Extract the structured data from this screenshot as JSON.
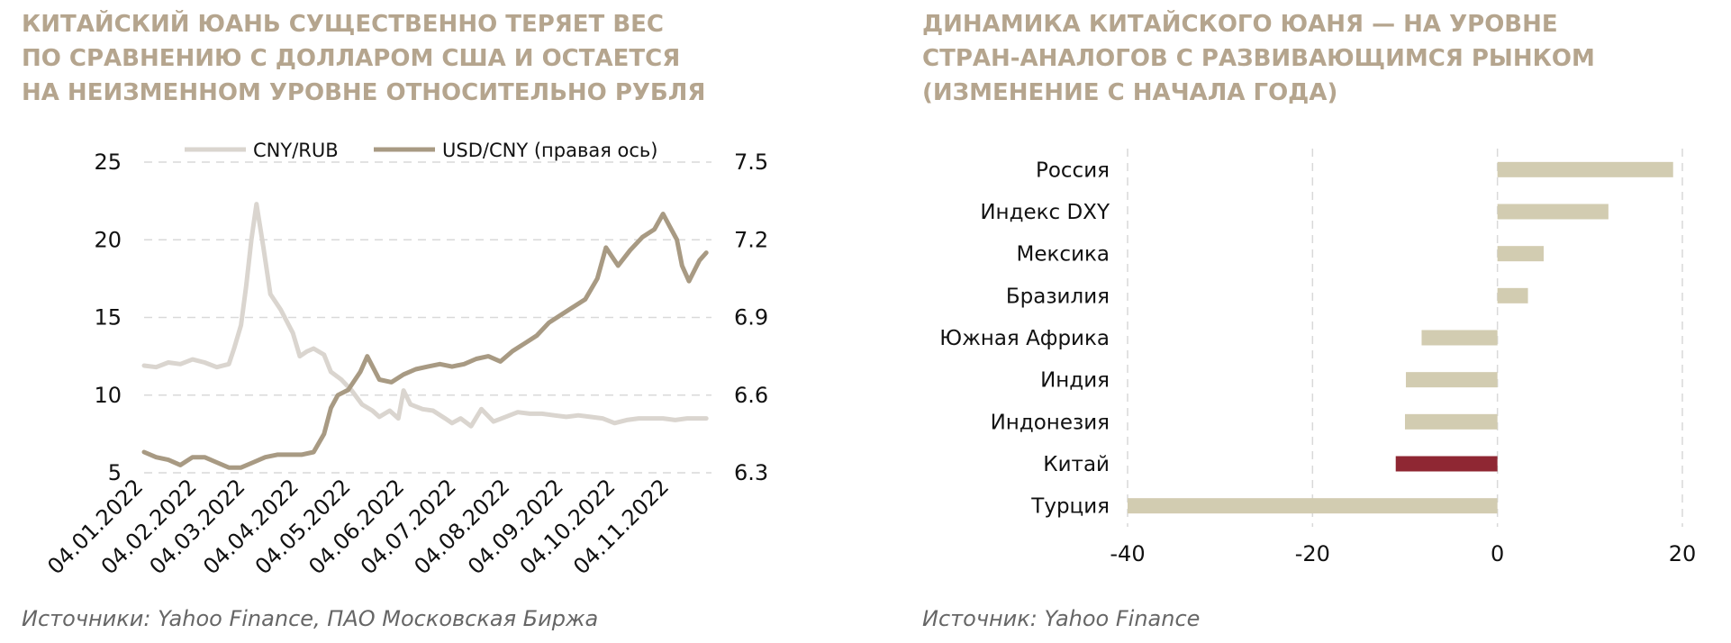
{
  "left": {
    "title": "КИТАЙСКИЙ ЮАНЬ СУЩЕСТВЕННО ТЕРЯЕТ ВЕС ПО СРАВНЕНИЮ С ДОЛЛАРОМ США И ОСТАЕТСЯ НА НЕИЗМЕННОМ УРОВНЕ ОТНОСИТЕЛЬНО РУБЛЯ",
    "source": "Источники: Yahoo Finance, ПАО Московская Биржа"
  },
  "right": {
    "title": "ДИНАМИКА КИТАЙСКОГО ЮАНЯ — НА УРОВНЕ СТРАН-АНАЛОГОВ С РАЗВИВАЮЩИМСЯ РЫНКОМ (ИЗМЕНЕНИЕ С НАЧАЛА ГОДА)",
    "source": "Источник: Yahoo Finance"
  },
  "chart_data": [
    {
      "type": "line",
      "legend_placement": "top",
      "grid": true,
      "x_tick_labels": [
        "04.01.2022",
        "04.02.2022",
        "04.03.2022",
        "04.04.2022",
        "04.05.2022",
        "04.06.2022",
        "04.07.2022",
        "04.08.2022",
        "04.09.2022",
        "04.10.2022",
        "04.11.2022"
      ],
      "y_left": {
        "ylim": [
          5,
          25
        ],
        "ticks": [
          "5",
          "10",
          "15",
          "20",
          "25"
        ]
      },
      "y_right": {
        "ylim": [
          6.3,
          7.5
        ],
        "ticks": [
          "6.3",
          "6.6",
          "6.9",
          "7.2",
          "7.5"
        ]
      },
      "series": [
        {
          "name": "CNY/RUB",
          "axis": "left",
          "color": "#dad5cf",
          "x": [
            "2022-01-04",
            "2022-01-11",
            "2022-01-18",
            "2022-01-25",
            "2022-02-01",
            "2022-02-08",
            "2022-02-15",
            "2022-02-22",
            "2022-02-25",
            "2022-03-01",
            "2022-03-04",
            "2022-03-07",
            "2022-03-10",
            "2022-03-14",
            "2022-03-18",
            "2022-03-24",
            "2022-03-31",
            "2022-04-04",
            "2022-04-08",
            "2022-04-12",
            "2022-04-18",
            "2022-04-22",
            "2022-04-28",
            "2022-05-04",
            "2022-05-10",
            "2022-05-16",
            "2022-05-20",
            "2022-05-26",
            "2022-05-31",
            "2022-06-03",
            "2022-06-07",
            "2022-06-14",
            "2022-06-20",
            "2022-06-27",
            "2022-07-01",
            "2022-07-06",
            "2022-07-12",
            "2022-07-18",
            "2022-07-25",
            "2022-08-01",
            "2022-08-08",
            "2022-08-15",
            "2022-08-22",
            "2022-08-29",
            "2022-09-05",
            "2022-09-12",
            "2022-09-19",
            "2022-09-26",
            "2022-10-03",
            "2022-10-10",
            "2022-10-17",
            "2022-10-24",
            "2022-10-31",
            "2022-11-07",
            "2022-11-14",
            "2022-11-21",
            "2022-11-25"
          ],
          "y": [
            11.9,
            11.8,
            12.1,
            12.0,
            12.3,
            12.1,
            11.8,
            12.0,
            13.0,
            14.5,
            17.0,
            20.0,
            22.3,
            19.5,
            16.5,
            15.5,
            14.0,
            12.5,
            12.8,
            13.0,
            12.6,
            11.5,
            11.0,
            10.3,
            9.4,
            9.0,
            8.6,
            9.0,
            8.5,
            10.3,
            9.4,
            9.1,
            9.0,
            8.5,
            8.2,
            8.5,
            8.0,
            9.1,
            8.3,
            8.6,
            8.9,
            8.8,
            8.8,
            8.7,
            8.6,
            8.7,
            8.6,
            8.5,
            8.2,
            8.4,
            8.5,
            8.5,
            8.5,
            8.4,
            8.5,
            8.5,
            8.5
          ]
        },
        {
          "name": "USD/CNY (правая ось)",
          "axis": "right",
          "color": "#a89a83",
          "x": [
            "2022-01-04",
            "2022-01-11",
            "2022-01-18",
            "2022-01-25",
            "2022-02-01",
            "2022-02-08",
            "2022-02-15",
            "2022-02-22",
            "2022-03-01",
            "2022-03-08",
            "2022-03-15",
            "2022-03-22",
            "2022-03-29",
            "2022-04-05",
            "2022-04-12",
            "2022-04-18",
            "2022-04-22",
            "2022-04-26",
            "2022-05-02",
            "2022-05-09",
            "2022-05-13",
            "2022-05-20",
            "2022-05-27",
            "2022-06-03",
            "2022-06-10",
            "2022-06-17",
            "2022-06-24",
            "2022-07-01",
            "2022-07-08",
            "2022-07-15",
            "2022-07-22",
            "2022-07-29",
            "2022-08-05",
            "2022-08-12",
            "2022-08-19",
            "2022-08-26",
            "2022-09-02",
            "2022-09-09",
            "2022-09-16",
            "2022-09-23",
            "2022-09-28",
            "2022-10-05",
            "2022-10-12",
            "2022-10-19",
            "2022-10-26",
            "2022-10-31",
            "2022-11-04",
            "2022-11-08",
            "2022-11-11",
            "2022-11-15",
            "2022-11-21",
            "2022-11-25"
          ],
          "y": [
            6.38,
            6.36,
            6.35,
            6.33,
            6.36,
            6.36,
            6.34,
            6.32,
            6.32,
            6.34,
            6.36,
            6.37,
            6.37,
            6.37,
            6.38,
            6.45,
            6.55,
            6.6,
            6.62,
            6.69,
            6.75,
            6.66,
            6.65,
            6.68,
            6.7,
            6.71,
            6.72,
            6.71,
            6.72,
            6.74,
            6.75,
            6.73,
            6.77,
            6.8,
            6.83,
            6.88,
            6.91,
            6.94,
            6.97,
            7.05,
            7.17,
            7.1,
            7.16,
            7.21,
            7.24,
            7.3,
            7.25,
            7.2,
            7.1,
            7.04,
            7.12,
            7.15
          ]
        }
      ]
    },
    {
      "type": "bar",
      "orientation": "horizontal",
      "grid": true,
      "categories": [
        "Россия",
        "Индекс DXY",
        "Мексика",
        "Бразилия",
        "Южная Африка",
        "Индия",
        "Индонезия",
        "Китай",
        "Турция"
      ],
      "values": [
        19,
        12,
        5,
        3.3,
        -8.2,
        -9.9,
        -10,
        -11,
        -40
      ],
      "colors": [
        "#d2ccb1",
        "#d2ccb1",
        "#d2ccb1",
        "#d2ccb1",
        "#d2ccb1",
        "#d2ccb1",
        "#d2ccb1",
        "#8f2733",
        "#d2ccb1"
      ],
      "xlim": [
        -40,
        20
      ],
      "x_ticks": [
        "-40",
        "-20",
        "0",
        "20"
      ]
    }
  ]
}
